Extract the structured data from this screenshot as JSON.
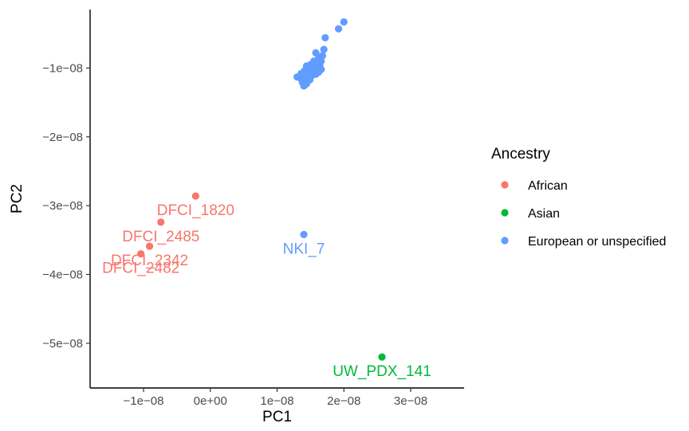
{
  "chart_data": {
    "type": "scatter",
    "xlabel": "PC1",
    "ylabel": "PC2",
    "xlim": [
      -1.8e-08,
      3.8e-08
    ],
    "ylim": [
      -5.65e-08,
      -1.5e-09
    ],
    "x_ticks": [
      {
        "value": -1e-08,
        "label": "−1e−08"
      },
      {
        "value": 0,
        "label": "0e+00"
      },
      {
        "value": 1e-08,
        "label": "1e−08"
      },
      {
        "value": 2e-08,
        "label": "2e−08"
      },
      {
        "value": 3e-08,
        "label": "3e−08"
      }
    ],
    "y_ticks": [
      {
        "value": -1e-08,
        "label": "−1e−08"
      },
      {
        "value": -2e-08,
        "label": "−2e−08"
      },
      {
        "value": -3e-08,
        "label": "−3e−08"
      },
      {
        "value": -4e-08,
        "label": "−4e−08"
      },
      {
        "value": -5e-08,
        "label": "−5e−08"
      }
    ],
    "grid": false,
    "legend": {
      "title": "Ancestry",
      "position": "right",
      "entries": [
        {
          "label": "African",
          "color": "#F8766D"
        },
        {
          "label": "Asian",
          "color": "#00BA38"
        },
        {
          "label": "European or unspecified",
          "color": "#619CFF"
        }
      ]
    },
    "series": [
      {
        "name": "African",
        "color": "#F8766D",
        "points": [
          {
            "x": -2.2e-09,
            "y": -2.86e-08,
            "label": "DFCI_1820"
          },
          {
            "x": -7.4e-09,
            "y": -3.24e-08,
            "label": "DFCI_2485"
          },
          {
            "x": -9.1e-09,
            "y": -3.59e-08,
            "label": "DFCI_2342"
          },
          {
            "x": -1.04e-08,
            "y": -3.7e-08,
            "label": "DFCI_2482"
          }
        ]
      },
      {
        "name": "Asian",
        "color": "#00BA38",
        "points": [
          {
            "x": 2.57e-08,
            "y": -5.2e-08,
            "label": "UW_PDX_141"
          }
        ]
      },
      {
        "name": "European or unspecified",
        "color": "#619CFF",
        "points": [
          {
            "x": 1.4e-08,
            "y": -3.42e-08,
            "label": "NKI_7"
          },
          {
            "x": 2e-08,
            "y": -3.3e-09
          },
          {
            "x": 1.92e-08,
            "y": -4.3e-09
          },
          {
            "x": 1.72e-08,
            "y": -5.6e-09
          },
          {
            "x": 1.7e-08,
            "y": -7.3e-09
          },
          {
            "x": 1.58e-08,
            "y": -7.8e-09
          },
          {
            "x": 1.68e-08,
            "y": -8.2e-09
          },
          {
            "x": 1.62e-08,
            "y": -8.6e-09
          },
          {
            "x": 1.55e-08,
            "y": -9e-09
          },
          {
            "x": 1.66e-08,
            "y": -9e-09
          },
          {
            "x": 1.6e-08,
            "y": -9.3e-09
          },
          {
            "x": 1.5e-08,
            "y": -9.5e-09
          },
          {
            "x": 1.64e-08,
            "y": -9.6e-09
          },
          {
            "x": 1.44e-08,
            "y": -9.7e-09
          },
          {
            "x": 1.56e-08,
            "y": -9.8e-09
          },
          {
            "x": 1.52e-08,
            "y": -1e-08
          },
          {
            "x": 1.6e-08,
            "y": -1e-08
          },
          {
            "x": 1.47e-08,
            "y": -1.02e-08
          },
          {
            "x": 1.66e-08,
            "y": -1.02e-08
          },
          {
            "x": 1.41e-08,
            "y": -1.04e-08
          },
          {
            "x": 1.55e-08,
            "y": -1.04e-08
          },
          {
            "x": 1.5e-08,
            "y": -1.06e-08
          },
          {
            "x": 1.62e-08,
            "y": -1.06e-08
          },
          {
            "x": 1.36e-08,
            "y": -1.08e-08
          },
          {
            "x": 1.45e-08,
            "y": -1.08e-08
          },
          {
            "x": 1.58e-08,
            "y": -1.09e-08
          },
          {
            "x": 1.41e-08,
            "y": -1.1e-08
          },
          {
            "x": 1.52e-08,
            "y": -1.11e-08
          },
          {
            "x": 1.3e-08,
            "y": -1.13e-08
          },
          {
            "x": 1.46e-08,
            "y": -1.13e-08
          },
          {
            "x": 1.36e-08,
            "y": -1.16e-08
          },
          {
            "x": 1.42e-08,
            "y": -1.18e-08
          },
          {
            "x": 1.49e-08,
            "y": -1.17e-08
          },
          {
            "x": 1.38e-08,
            "y": -1.21e-08
          },
          {
            "x": 1.44e-08,
            "y": -1.23e-08
          },
          {
            "x": 1.4e-08,
            "y": -1.26e-08
          }
        ]
      }
    ]
  }
}
